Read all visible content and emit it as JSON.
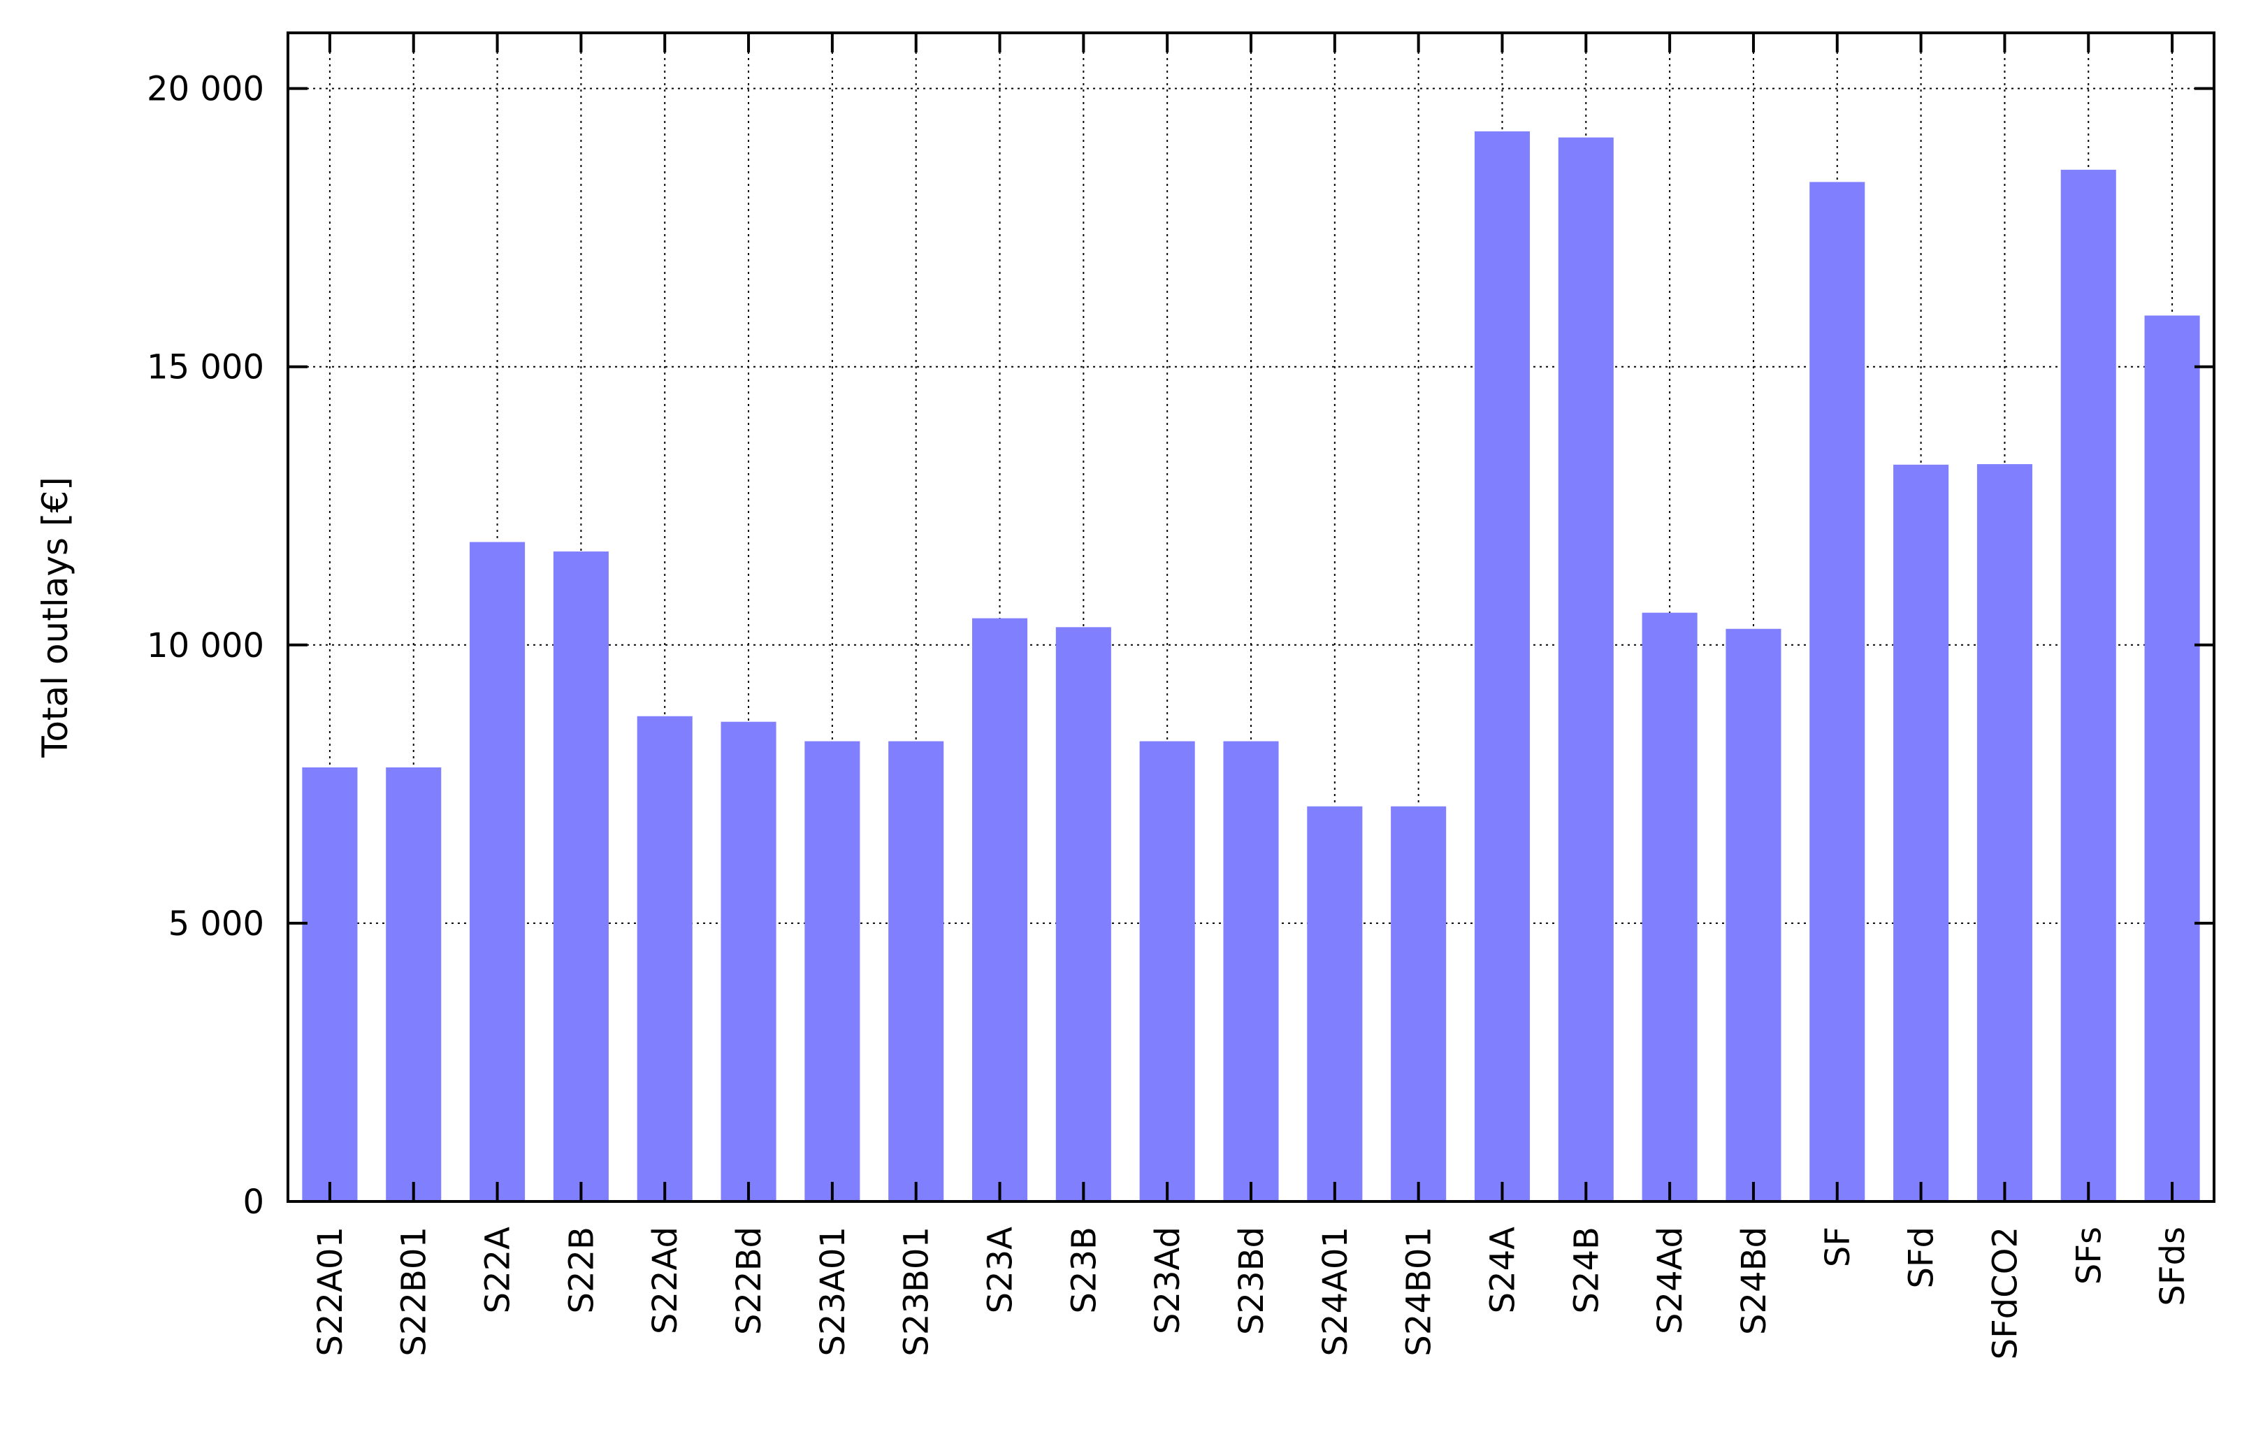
{
  "chart_data": {
    "type": "bar",
    "title": "",
    "xlabel": "",
    "ylabel": "Total outlays [€]",
    "ylim": [
      0,
      21000
    ],
    "yticks": [
      0,
      5000,
      10000,
      15000,
      20000
    ],
    "ytick_labels": [
      "0",
      "5 000",
      "10 000",
      "15 000",
      "20 000"
    ],
    "grid": true,
    "legend": "none",
    "bar_color": "#8080ff",
    "categories": [
      "S22A01",
      "S22B01",
      "S22A",
      "S22B",
      "S22Ad",
      "S22Bd",
      "S23A01",
      "S23B01",
      "S23A",
      "S23B",
      "S23Ad",
      "S23Bd",
      "S24A01",
      "S24B01",
      "S24A",
      "S24B",
      "S24Ad",
      "S24Bd",
      "SF",
      "SFd",
      "SFdCO2",
      "SFs",
      "SFds"
    ],
    "values": [
      7800,
      7800,
      11850,
      11680,
      8720,
      8620,
      8270,
      8270,
      10480,
      10320,
      8270,
      8270,
      7100,
      7100,
      19230,
      19120,
      10580,
      10290,
      18320,
      13240,
      13250,
      18540,
      15920
    ]
  }
}
